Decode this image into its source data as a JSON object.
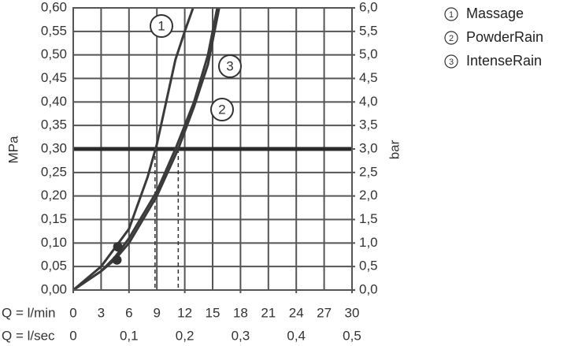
{
  "chart_data": {
    "type": "line",
    "ylabel": "MPa",
    "y2label": "bar",
    "xlabel": "Q = l/min",
    "x2label": "Q = l/sec",
    "xlim": [
      0,
      30
    ],
    "xticks": [
      0,
      3,
      6,
      9,
      12,
      15,
      18,
      21,
      24,
      27,
      30
    ],
    "x2lim": [
      0,
      0.5
    ],
    "x2ticks": [
      0,
      {
        "value": 0.1,
        "label": "0,1"
      },
      {
        "value": 0.2,
        "label": "0,2"
      },
      {
        "value": 0.3,
        "label": "0,3"
      },
      {
        "value": 0.4,
        "label": "0,4"
      },
      {
        "value": 0.5,
        "label": "0,5"
      }
    ],
    "ylim": [
      0,
      0.6
    ],
    "yticks": [
      {
        "value": 0,
        "label": "0,00"
      },
      {
        "value": 0.05,
        "label": "0,05"
      },
      {
        "value": 0.1,
        "label": "0,10"
      },
      {
        "value": 0.15,
        "label": "0,15"
      },
      {
        "value": 0.2,
        "label": "0,20"
      },
      {
        "value": 0.25,
        "label": "0,25"
      },
      {
        "value": 0.3,
        "label": "0,30"
      },
      {
        "value": 0.35,
        "label": "0,35"
      },
      {
        "value": 0.4,
        "label": "0,40"
      },
      {
        "value": 0.45,
        "label": "0,45"
      },
      {
        "value": 0.5,
        "label": "0,50"
      },
      {
        "value": 0.55,
        "label": "0,55"
      },
      {
        "value": 0.6,
        "label": "0,60"
      }
    ],
    "y2lim": [
      0,
      6
    ],
    "y2ticks": [
      {
        "value": 0,
        "label": "0,0"
      },
      {
        "value": 0.5,
        "label": "0,5"
      },
      {
        "value": 1,
        "label": "1,0"
      },
      {
        "value": 1.5,
        "label": "1,5"
      },
      {
        "value": 2,
        "label": "2,0"
      },
      {
        "value": 2.5,
        "label": "2,5"
      },
      {
        "value": 3,
        "label": "3,0"
      },
      {
        "value": 3.5,
        "label": "3,5"
      },
      {
        "value": 4,
        "label": "4,0"
      },
      {
        "value": 4.5,
        "label": "4,5"
      },
      {
        "value": 5,
        "label": "5,0"
      },
      {
        "value": 5.5,
        "label": "5,5"
      },
      {
        "value": 6,
        "label": "6,0"
      }
    ],
    "grid": true,
    "reference_y": 0.3,
    "reference_x": [
      8.8,
      11.3
    ],
    "points": {
      "x": [
        4.8,
        4.7
      ],
      "y": [
        0.092,
        0.064
      ]
    },
    "series": [
      {
        "name": "Massage",
        "label": "1",
        "color": "#3a3a3a",
        "x": [
          0,
          3,
          4.5,
          6,
          8,
          9,
          10,
          11,
          12,
          12.9
        ],
        "y": [
          0,
          0.05,
          0.09,
          0.13,
          0.24,
          0.31,
          0.4,
          0.49,
          0.55,
          0.6
        ]
      },
      {
        "name": "PowderRain",
        "label": "2",
        "color": "#3a3a3a",
        "x": [
          0,
          3,
          4.5,
          6,
          9,
          11.3,
          13,
          14.5,
          15.7
        ],
        "y": [
          0,
          0.04,
          0.065,
          0.1,
          0.2,
          0.3,
          0.39,
          0.48,
          0.6
        ]
      },
      {
        "name": "IntenseRain",
        "label": "3",
        "color": "#3a3a3a",
        "x": [
          0,
          3,
          4.5,
          6,
          9,
          11,
          13,
          14.5,
          15.5
        ],
        "y": [
          0,
          0.04,
          0.07,
          0.11,
          0.21,
          0.3,
          0.4,
          0.5,
          0.6
        ]
      }
    ]
  }
}
